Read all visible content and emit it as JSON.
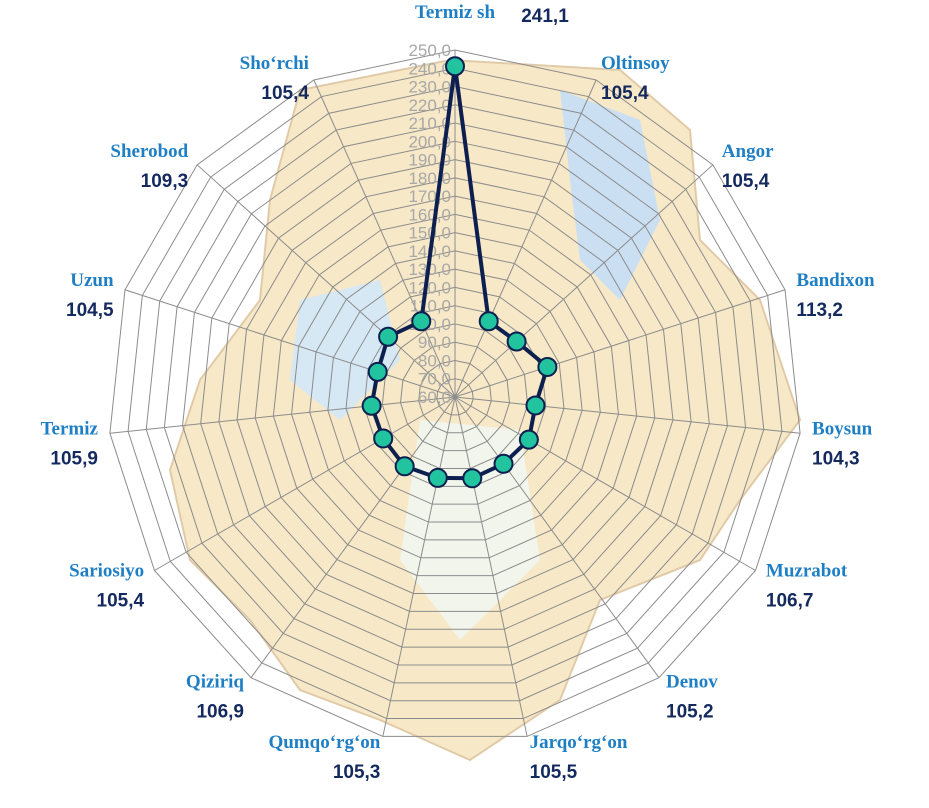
{
  "chart_data": {
    "type": "radar",
    "categories": [
      "Termiz sh",
      "Oltinsoy",
      "Angor",
      "Bandixon",
      "Boysun",
      "Muzrabot",
      "Denov",
      "Jarqo‘rg‘on",
      "Qumqo‘rg‘on",
      "Qiziriq",
      "Sariosiyo",
      "Termiz",
      "Uzun",
      "Sherobod",
      "Sho‘rchi"
    ],
    "values": [
      241.1,
      105.4,
      105.4,
      113.2,
      104.3,
      106.7,
      105.2,
      105.5,
      105.3,
      106.9,
      105.4,
      105.9,
      104.5,
      109.3,
      105.4
    ],
    "value_labels": [
      "241,1",
      "105,4",
      "105,4",
      "113,2",
      "104,3",
      "106,7",
      "105,2",
      "105,5",
      "105,3",
      "106,9",
      "105,4",
      "105,9",
      "104,5",
      "109,3",
      "105,4"
    ],
    "color": "#0d1f4f",
    "marker_color": "#22c4a0",
    "ylim": [
      60,
      250
    ],
    "yticks": [
      {
        "value": 60,
        "label": "60,0"
      },
      {
        "value": 70,
        "label": "70,0"
      },
      {
        "value": 80,
        "label": "80,0"
      },
      {
        "value": 90,
        "label": "90,0"
      },
      {
        "value": 100,
        "label": "100,0"
      },
      {
        "value": 110,
        "label": "110,0"
      },
      {
        "value": 120,
        "label": "120,0"
      },
      {
        "value": 130,
        "label": "130,0"
      },
      {
        "value": 140,
        "label": "140,0"
      },
      {
        "value": 150,
        "label": "150,0"
      },
      {
        "value": 160,
        "label": "160,0"
      },
      {
        "value": 170,
        "label": "170,0"
      },
      {
        "value": 180,
        "label": "180,0"
      },
      {
        "value": 190,
        "label": "190,0"
      },
      {
        "value": 200,
        "label": "200,0"
      },
      {
        "value": 210,
        "label": "210,0"
      },
      {
        "value": 220,
        "label": "220,0"
      },
      {
        "value": 230,
        "label": "230,0"
      },
      {
        "value": 240,
        "label": "240,0"
      },
      {
        "value": 250,
        "label": "250,0"
      }
    ],
    "grid": true
  }
}
